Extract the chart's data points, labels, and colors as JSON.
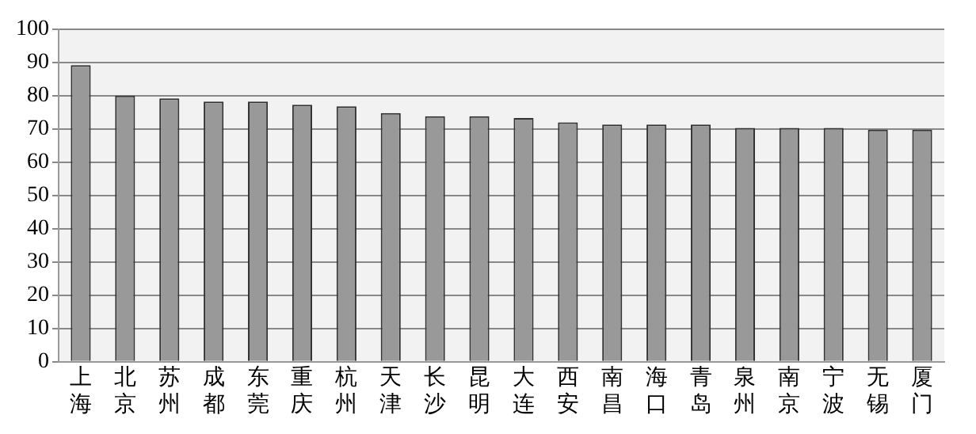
{
  "chart_data": {
    "type": "bar",
    "categories": [
      "上海",
      "北京",
      "苏州",
      "成都",
      "东莞",
      "重庆",
      "杭州",
      "天津",
      "长沙",
      "昆明",
      "大连",
      "西安",
      "南昌",
      "海口",
      "青岛",
      "泉州",
      "南京",
      "宁波",
      "无锡",
      "厦门"
    ],
    "values": [
      89.2,
      80,
      79.2,
      78.2,
      78.2,
      77.3,
      76.8,
      74.8,
      73.8,
      73.8,
      73.3,
      72,
      71.3,
      71.3,
      71.3,
      70.3,
      70.3,
      70.3,
      69.8,
      69.8
    ],
    "color": "#999999",
    "ylim": [
      0,
      100
    ],
    "yticks": [
      0,
      10,
      20,
      30,
      40,
      50,
      60,
      70,
      80,
      90,
      100
    ],
    "grid": "y",
    "legend": false
  }
}
